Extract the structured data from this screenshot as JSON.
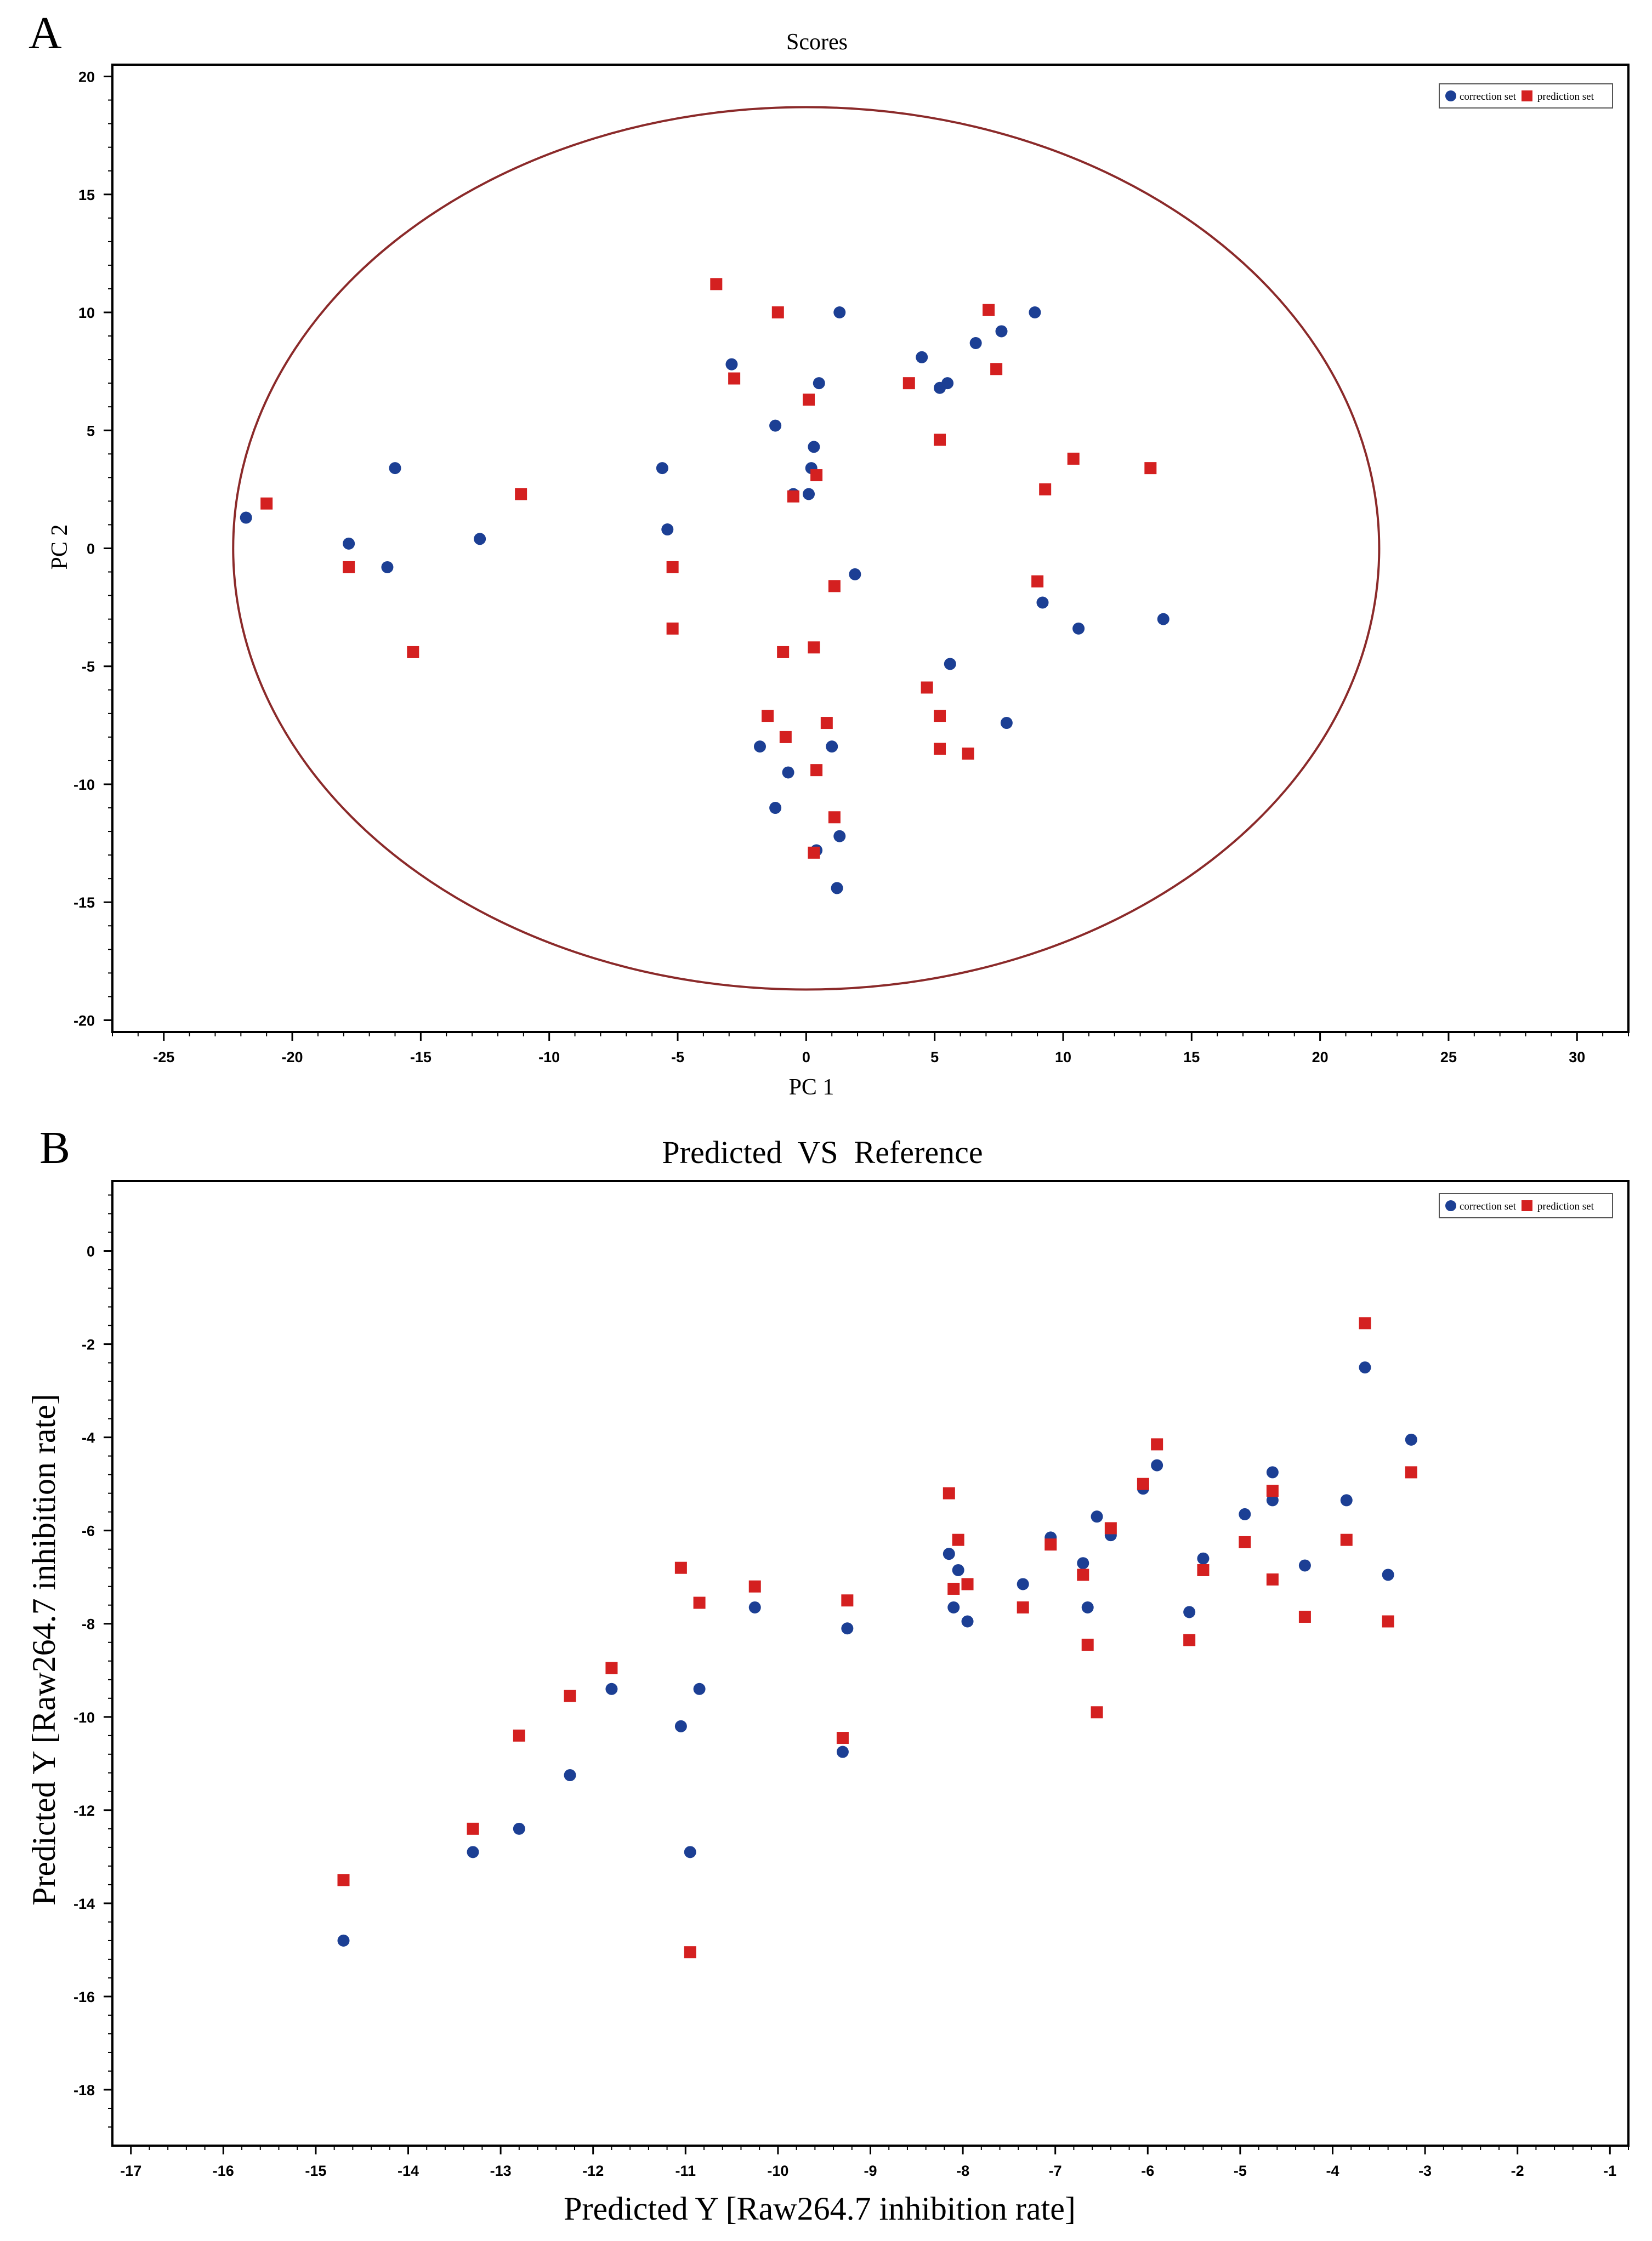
{
  "chart_data": [
    {
      "panel_label": "A",
      "type": "scatter",
      "title": "Scores",
      "xlabel": "PC 1",
      "ylabel": "PC 2",
      "xlim": [
        -27,
        32
      ],
      "ylim": [
        -20.5,
        20.5
      ],
      "xticks": [
        -25,
        -20,
        -15,
        -10,
        -5,
        0,
        5,
        10,
        15,
        20,
        25,
        30
      ],
      "yticks": [
        20,
        15,
        10,
        5,
        0,
        -5,
        -10,
        -15,
        -20
      ],
      "grid": false,
      "legend": {
        "placement": "top-right",
        "entries": [
          "correction set",
          "prediction set"
        ]
      },
      "ellipse": {
        "center": [
          0,
          0
        ],
        "rx": 22.3,
        "ry": 18.7,
        "color": "#8b2a2a"
      },
      "series": [
        {
          "name": "correction set",
          "marker": "circle",
          "color": "#1c3f94",
          "points": [
            [
              -21.8,
              1.3
            ],
            [
              -17.8,
              0.2
            ],
            [
              -16,
              3.4
            ],
            [
              -16.3,
              -0.8
            ],
            [
              -12.7,
              0.4
            ],
            [
              -5.6,
              3.4
            ],
            [
              -5.4,
              0.8
            ],
            [
              -2.9,
              7.8
            ],
            [
              -1.2,
              5.2
            ],
            [
              0.3,
              4.3
            ],
            [
              0.5,
              7
            ],
            [
              1.3,
              10
            ],
            [
              4.5,
              8.1
            ],
            [
              5.2,
              6.8
            ],
            [
              5.5,
              7
            ],
            [
              6.6,
              8.7
            ],
            [
              7.6,
              9.2
            ],
            [
              8.9,
              10
            ],
            [
              0.2,
              3.4
            ],
            [
              -0.5,
              2.3
            ],
            [
              0.1,
              2.3
            ],
            [
              1.9,
              -1.1
            ],
            [
              9.2,
              -2.3
            ],
            [
              10.6,
              -3.4
            ],
            [
              13.9,
              -3
            ],
            [
              5.6,
              -4.9
            ],
            [
              7.8,
              -7.4
            ],
            [
              -1.8,
              -8.4
            ],
            [
              -0.7,
              -9.5
            ],
            [
              1,
              -8.4
            ],
            [
              -1.2,
              -11
            ],
            [
              0.4,
              -12.8
            ],
            [
              1.3,
              -12.2
            ],
            [
              1.2,
              -14.4
            ]
          ]
        },
        {
          "name": "prediction set",
          "marker": "square",
          "color": "#d42020",
          "points": [
            [
              -21,
              1.9
            ],
            [
              -17.8,
              -0.8
            ],
            [
              -15.3,
              -4.4
            ],
            [
              -11.1,
              2.3
            ],
            [
              -5.2,
              -0.8
            ],
            [
              -5.2,
              -3.4
            ],
            [
              -3.5,
              11.2
            ],
            [
              -2.8,
              7.2
            ],
            [
              -1.1,
              10
            ],
            [
              0.1,
              6.3
            ],
            [
              4,
              7
            ],
            [
              5.2,
              4.6
            ],
            [
              7.1,
              10.1
            ],
            [
              7.4,
              7.6
            ],
            [
              0.4,
              3.1
            ],
            [
              -0.5,
              2.2
            ],
            [
              1.1,
              -1.6
            ],
            [
              9,
              -1.4
            ],
            [
              9.3,
              2.5
            ],
            [
              10.4,
              3.8
            ],
            [
              13.4,
              3.4
            ],
            [
              -0.9,
              -4.4
            ],
            [
              0.3,
              -4.2
            ],
            [
              -1.5,
              -7.1
            ],
            [
              0.8,
              -7.4
            ],
            [
              -0.8,
              -8
            ],
            [
              0.4,
              -9.4
            ],
            [
              1.1,
              -11.4
            ],
            [
              0.3,
              -12.9
            ],
            [
              4.7,
              -5.9
            ],
            [
              5.2,
              -7.1
            ],
            [
              5.2,
              -8.5
            ],
            [
              6.3,
              -8.7
            ]
          ]
        }
      ]
    },
    {
      "panel_label": "B",
      "type": "scatter",
      "title": "Predicted  VS  Reference",
      "xlabel": "Predicted Y [Raw264.7 inhibition rate]",
      "ylabel": "Predicted Y [Raw264.7 inhibition rate]",
      "xlim": [
        -17.2,
        -0.8
      ],
      "ylim": [
        -19.2,
        1.5
      ],
      "xticks": [
        -17,
        -16,
        -15,
        -14,
        -13,
        -12,
        -11,
        -10,
        -9,
        -8,
        -7,
        -6,
        -5,
        -4,
        -3,
        -2,
        -1
      ],
      "yticks": [
        0,
        -2,
        -4,
        -6,
        -8,
        -10,
        -12,
        -14,
        -16,
        -18
      ],
      "grid": false,
      "legend": {
        "placement": "top-right",
        "entries": [
          "correction set",
          "prediction set"
        ]
      },
      "series": [
        {
          "name": "correction set",
          "marker": "circle",
          "color": "#1c3f94",
          "points": [
            [
              -14.7,
              -14.8
            ],
            [
              -13.3,
              -12.9
            ],
            [
              -12.8,
              -12.4
            ],
            [
              -12.25,
              -11.25
            ],
            [
              -11.8,
              -9.4
            ],
            [
              -11.05,
              -10.2
            ],
            [
              -10.95,
              -12.9
            ],
            [
              -10.85,
              -9.4
            ],
            [
              -10.25,
              -7.65
            ],
            [
              -9.3,
              -10.75
            ],
            [
              -9.25,
              -8.1
            ],
            [
              -8.15,
              -6.5
            ],
            [
              -8.1,
              -7.65
            ],
            [
              -8.05,
              -6.85
            ],
            [
              -7.95,
              -7.95
            ],
            [
              -7.35,
              -7.15
            ],
            [
              -7.05,
              -6.15
            ],
            [
              -6.7,
              -6.7
            ],
            [
              -6.65,
              -7.65
            ],
            [
              -6.55,
              -5.7
            ],
            [
              -6.4,
              -6.1
            ],
            [
              -6.05,
              -5.1
            ],
            [
              -5.9,
              -4.6
            ],
            [
              -5.55,
              -7.75
            ],
            [
              -5.4,
              -6.6
            ],
            [
              -4.95,
              -5.65
            ],
            [
              -4.65,
              -4.75
            ],
            [
              -4.65,
              -5.35
            ],
            [
              -4.3,
              -6.75
            ],
            [
              -3.85,
              -5.35
            ],
            [
              -3.65,
              -2.5
            ],
            [
              -3.4,
              -6.95
            ],
            [
              -3.15,
              -4.05
            ]
          ]
        },
        {
          "name": "prediction set",
          "marker": "square",
          "color": "#d42020",
          "points": [
            [
              -14.7,
              -13.5
            ],
            [
              -13.3,
              -12.4
            ],
            [
              -12.8,
              -10.4
            ],
            [
              -12.25,
              -9.55
            ],
            [
              -11.8,
              -8.95
            ],
            [
              -11.05,
              -6.8
            ],
            [
              -10.95,
              -15.05
            ],
            [
              -10.85,
              -7.55
            ],
            [
              -10.25,
              -7.2
            ],
            [
              -9.3,
              -10.45
            ],
            [
              -9.25,
              -7.5
            ],
            [
              -8.15,
              -5.2
            ],
            [
              -8.1,
              -7.25
            ],
            [
              -8.05,
              -6.2
            ],
            [
              -7.95,
              -7.15
            ],
            [
              -7.35,
              -7.65
            ],
            [
              -7.05,
              -6.3
            ],
            [
              -6.7,
              -6.95
            ],
            [
              -6.65,
              -8.45
            ],
            [
              -6.55,
              -9.9
            ],
            [
              -6.4,
              -5.95
            ],
            [
              -6.05,
              -5
            ],
            [
              -5.9,
              -4.15
            ],
            [
              -5.55,
              -8.35
            ],
            [
              -5.4,
              -6.85
            ],
            [
              -4.95,
              -6.25
            ],
            [
              -4.65,
              -5.15
            ],
            [
              -4.65,
              -7.05
            ],
            [
              -4.3,
              -7.85
            ],
            [
              -3.85,
              -6.2
            ],
            [
              -3.65,
              -1.55
            ],
            [
              -3.4,
              -7.95
            ],
            [
              -3.15,
              -4.75
            ]
          ]
        }
      ]
    }
  ]
}
